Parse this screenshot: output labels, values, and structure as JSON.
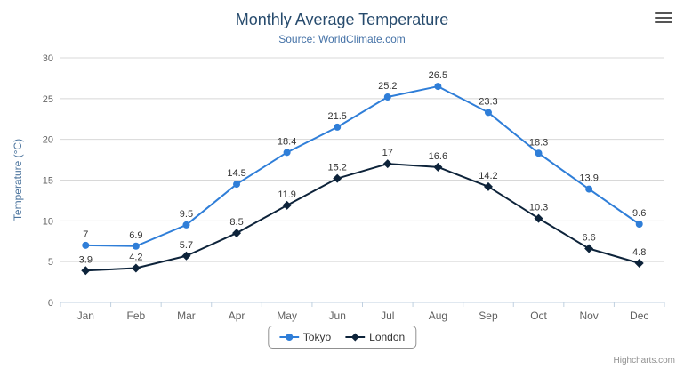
{
  "credits": "Highcharts.com",
  "toolbar": {
    "menu_icon": "hamburger-icon"
  },
  "chart_data": {
    "type": "line",
    "title": "Monthly Average Temperature",
    "subtitle": "Source: WorldClimate.com",
    "categories": [
      "Jan",
      "Feb",
      "Mar",
      "Apr",
      "May",
      "Jun",
      "Jul",
      "Aug",
      "Sep",
      "Oct",
      "Nov",
      "Dec"
    ],
    "series": [
      {
        "name": "Tokyo",
        "color": "#2f7ed8",
        "marker": "circle",
        "values": [
          7,
          6.9,
          9.5,
          14.5,
          18.4,
          21.5,
          25.2,
          26.5,
          23.3,
          18.3,
          13.9,
          9.6
        ]
      },
      {
        "name": "London",
        "color": "#0d233a",
        "marker": "diamond",
        "values": [
          3.9,
          4.2,
          5.7,
          8.5,
          11.9,
          15.2,
          17,
          16.6,
          14.2,
          10.3,
          6.6,
          4.8
        ]
      }
    ],
    "xlabel": "",
    "ylabel": "Temperature (°C)",
    "ylim": [
      0,
      30
    ],
    "ytick_step": 5,
    "grid": true,
    "data_labels": true,
    "legend_position": "bottom"
  }
}
